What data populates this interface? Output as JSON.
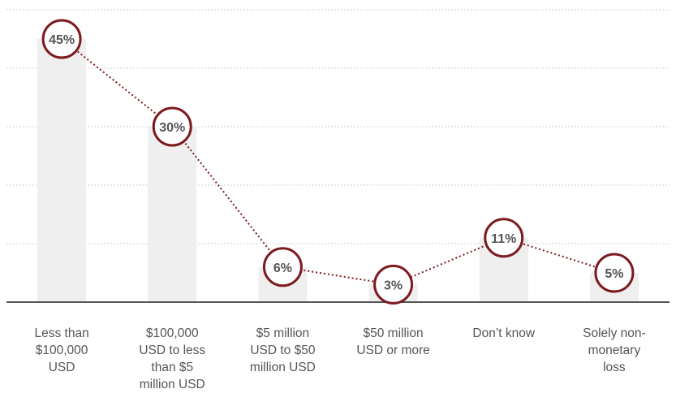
{
  "chart_data": {
    "type": "bar",
    "categories": [
      "Less than $100,000 USD",
      "$100,000 USD to less than $5 million USD",
      "$5 million USD to $50 million USD",
      "$50 million USD or more",
      "Don’t know",
      "Solely non-monetary loss"
    ],
    "category_lines": [
      [
        "Less than",
        "$100,000",
        "USD"
      ],
      [
        "$100,000",
        "USD to less",
        "than $5",
        "million USD"
      ],
      [
        "$5 million",
        "USD to $50",
        "million USD"
      ],
      [
        "$50 million",
        "USD or more"
      ],
      [
        "Don’t know"
      ],
      [
        "Solely non-",
        "monetary",
        "loss"
      ]
    ],
    "values": [
      45,
      30,
      6,
      3,
      11,
      5
    ],
    "value_labels": [
      "45%",
      "30%",
      "6%",
      "3%",
      "11%",
      "5%"
    ],
    "ylim": [
      0,
      50
    ],
    "grid": true,
    "connecting_line": "dotted",
    "colors": {
      "bar": "#efefef",
      "marker": "#7d1a1f",
      "label": "#555555",
      "grid": "#cfcfcf",
      "axis": "#555555"
    }
  }
}
